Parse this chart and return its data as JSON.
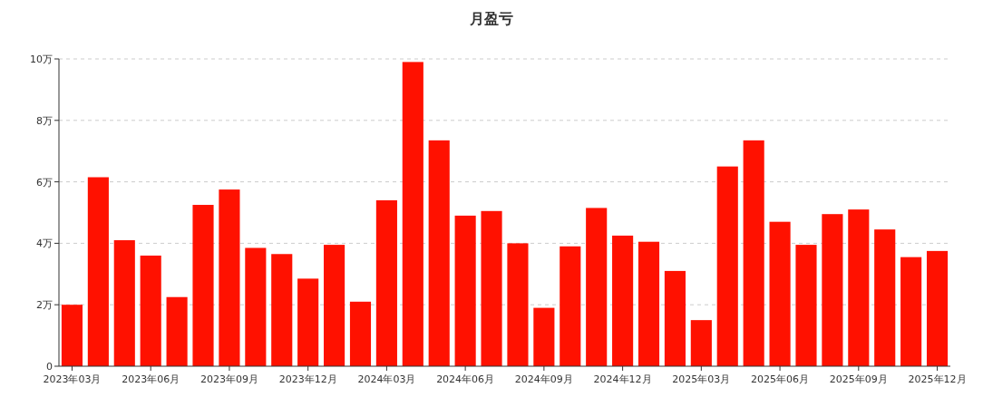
{
  "chart_data": {
    "type": "bar",
    "title": "月盈亏",
    "categories": [
      "2023年03月",
      null,
      null,
      "2023年06月",
      null,
      null,
      "2023年09月",
      null,
      null,
      "2023年12月",
      null,
      null,
      "2024年03月",
      null,
      null,
      "2024年06月",
      null,
      null,
      "2024年09月",
      null,
      null,
      "2024年12月",
      null,
      null,
      "2025年03月",
      null,
      null,
      "2025年06月",
      null,
      null,
      "2025年09月",
      null,
      null,
      "2025年12月"
    ],
    "values": [
      2.0,
      6.15,
      4.1,
      3.6,
      2.25,
      5.25,
      5.75,
      3.85,
      3.65,
      2.85,
      3.95,
      2.1,
      5.4,
      9.9,
      7.35,
      4.9,
      5.05,
      4.0,
      1.9,
      3.9,
      5.15,
      4.25,
      4.05,
      3.1,
      1.5,
      6.5,
      7.35,
      4.7,
      3.95,
      4.95,
      5.1,
      4.45,
      3.55,
      3.75
    ],
    "color": "#ff1100",
    "ylim": [
      0,
      10
    ],
    "yticks": [
      0,
      {
        "value": 2,
        "label": "2万"
      },
      {
        "value": 4,
        "label": "4万"
      },
      {
        "value": 6,
        "label": "6万"
      },
      {
        "value": 8,
        "label": "8万"
      },
      {
        "value": 10,
        "label": "10万"
      }
    ],
    "grid": "y"
  }
}
